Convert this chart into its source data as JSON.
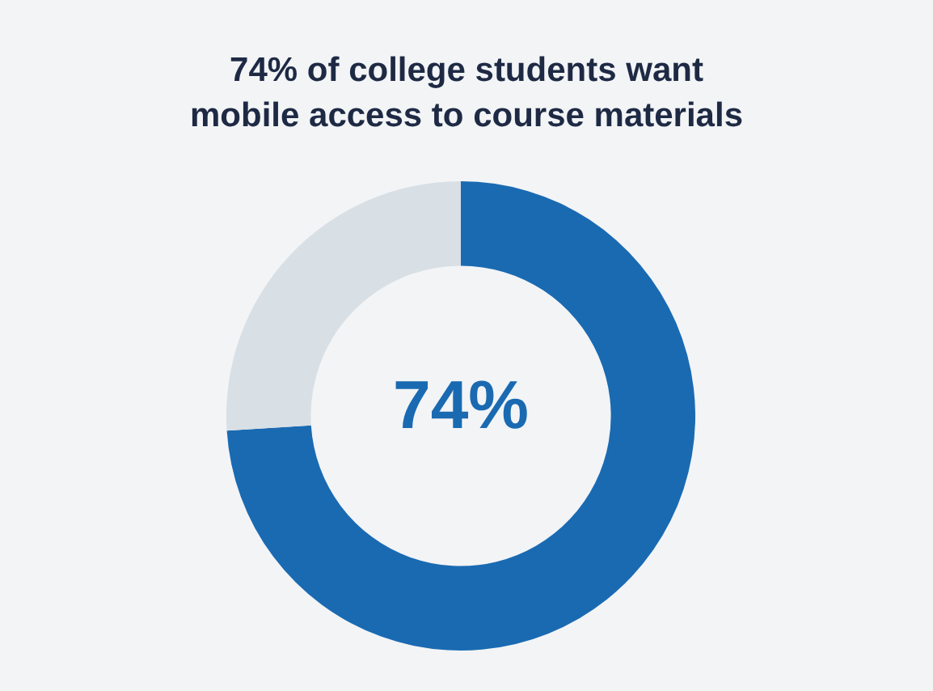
{
  "chart_data": {
    "type": "donut",
    "title": "74% of college students want mobile access to course materials",
    "categories": [
      null,
      null
    ],
    "values": [
      74,
      26
    ],
    "colors": [
      "#1a6ab2",
      "#d8dfe5"
    ],
    "annotations": [
      "74%"
    ]
  }
}
